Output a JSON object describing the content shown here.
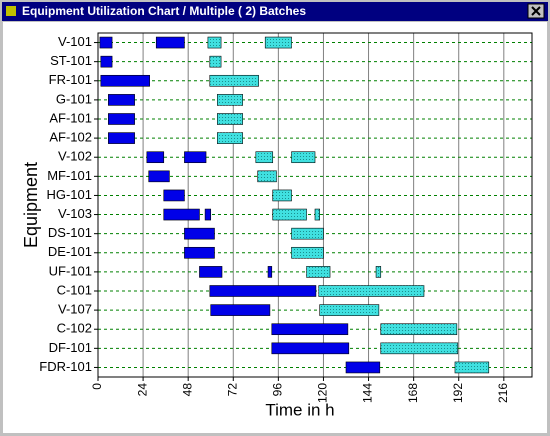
{
  "chart_data": {
    "type": "gantt",
    "title": "Equipment Utilization Chart / Multiple ( 2) Batches",
    "x_label": "Time in h",
    "y_label": "Equipment",
    "categories": [
      "V-101",
      "ST-101",
      "FR-101",
      "G-101",
      "AF-101",
      "AF-102",
      "V-102",
      "MF-101",
      "HG-101",
      "V-103",
      "DS-101",
      "DE-101",
      "UF-101",
      "C-101",
      "V-107",
      "C-102",
      "DF-101",
      "FDR-101"
    ],
    "xlim": [
      0,
      231
    ],
    "xticks": [
      0,
      24,
      48,
      72,
      96,
      120,
      144,
      168,
      192,
      216
    ],
    "grid": true,
    "series": [
      {
        "color": "#0000e8",
        "values": [
          [
            [
              1,
              7.5
            ],
            [
              31,
              46
            ]
          ],
          [
            [
              1.5,
              7.5
            ]
          ],
          [
            [
              1.5,
              27.5
            ]
          ],
          [
            [
              5.5,
              19.5
            ]
          ],
          [
            [
              5.5,
              19.5
            ]
          ],
          [
            [
              5.5,
              19.5
            ]
          ],
          [
            [
              26,
              35
            ],
            [
              46,
              57.5
            ]
          ],
          [
            [
              27,
              38
            ]
          ],
          [
            [
              35,
              46
            ]
          ],
          [
            [
              35,
              54
            ],
            [
              57,
              60
            ]
          ],
          [
            [
              46,
              62
            ]
          ],
          [
            [
              46,
              62
            ]
          ],
          [
            [
              54,
              66
            ],
            [
              90.5,
              92.5
            ]
          ],
          [
            [
              59.5,
              116
            ]
          ],
          [
            [
              60,
              91.5
            ]
          ],
          [
            [
              92.5,
              133
            ]
          ],
          [
            [
              92.5,
              133.5
            ]
          ],
          [
            [
              132,
              150
            ]
          ]
        ]
      },
      {
        "color": "#40e0e0",
        "values": [
          [
            [
              58.5,
              65.5
            ],
            [
              89,
              103
            ]
          ],
          [
            [
              59.5,
              65.5
            ]
          ],
          [
            [
              59.5,
              85.5
            ]
          ],
          [
            [
              63.5,
              77
            ]
          ],
          [
            [
              63.5,
              77
            ]
          ],
          [
            [
              63.5,
              77
            ]
          ],
          [
            [
              84,
              93
            ],
            [
              103,
              115.5
            ]
          ],
          [
            [
              85,
              95
            ]
          ],
          [
            [
              93,
              103
            ]
          ],
          [
            [
              93,
              111
            ],
            [
              115.5,
              118
            ]
          ],
          [
            [
              103,
              120
            ]
          ],
          [
            [
              103,
              120
            ]
          ],
          [
            [
              111,
              123.5
            ],
            [
              148,
              150.5
            ]
          ],
          [
            [
              117.5,
              173.5
            ]
          ],
          [
            [
              118,
              149.5
            ]
          ],
          [
            [
              150.5,
              191
            ]
          ],
          [
            [
              150.5,
              191.5
            ]
          ],
          [
            [
              190,
              208
            ]
          ]
        ]
      }
    ]
  }
}
